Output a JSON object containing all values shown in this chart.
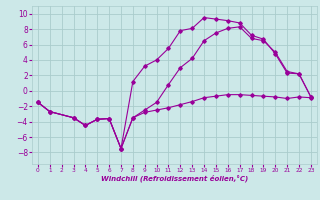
{
  "xlabel": "Windchill (Refroidissement éolien,°C)",
  "ylabel": "",
  "background_color": "#cce8e8",
  "grid_color": "#aacccc",
  "line_color": "#990099",
  "xlim": [
    -0.5,
    23.5
  ],
  "ylim": [
    -9.5,
    11
  ],
  "yticks": [
    -8,
    -6,
    -4,
    -2,
    0,
    2,
    4,
    6,
    8,
    10
  ],
  "xticks": [
    0,
    1,
    2,
    3,
    4,
    5,
    6,
    7,
    8,
    9,
    10,
    11,
    12,
    13,
    14,
    15,
    16,
    17,
    18,
    19,
    20,
    21,
    22,
    23
  ],
  "series1_x": [
    0,
    1,
    3,
    4,
    5,
    6,
    7,
    8,
    9,
    10,
    11,
    12,
    13,
    14,
    15,
    16,
    17,
    18,
    19,
    20,
    21,
    22,
    23
  ],
  "series1_y": [
    -1.5,
    -2.7,
    -3.5,
    -4.5,
    -3.7,
    -3.6,
    -7.5,
    1.2,
    3.2,
    4.0,
    5.5,
    7.8,
    8.1,
    9.5,
    9.3,
    9.1,
    8.8,
    7.2,
    6.7,
    4.8,
    2.3,
    2.2,
    -0.8
  ],
  "series2_x": [
    0,
    1,
    3,
    4,
    5,
    6,
    7,
    8,
    9,
    10,
    11,
    12,
    13,
    14,
    15,
    16,
    17,
    18,
    19,
    20,
    21,
    22,
    23
  ],
  "series2_y": [
    -1.5,
    -2.7,
    -3.5,
    -4.5,
    -3.7,
    -3.6,
    -7.5,
    -3.5,
    -2.8,
    -2.5,
    -2.2,
    -1.8,
    -1.4,
    -0.9,
    -0.7,
    -0.5,
    -0.5,
    -0.6,
    -0.7,
    -0.8,
    -1.0,
    -0.8,
    -0.9
  ],
  "series3_x": [
    0,
    1,
    3,
    4,
    5,
    6,
    7,
    8,
    9,
    10,
    11,
    12,
    13,
    14,
    15,
    16,
    17,
    18,
    19,
    20,
    21,
    22,
    23
  ],
  "series3_y": [
    -1.5,
    -2.7,
    -3.5,
    -4.5,
    -3.7,
    -3.6,
    -7.5,
    -3.5,
    -2.5,
    -1.5,
    0.8,
    3.0,
    4.2,
    6.5,
    7.5,
    8.1,
    8.3,
    6.8,
    6.5,
    5.0,
    2.5,
    2.2,
    -0.8
  ]
}
